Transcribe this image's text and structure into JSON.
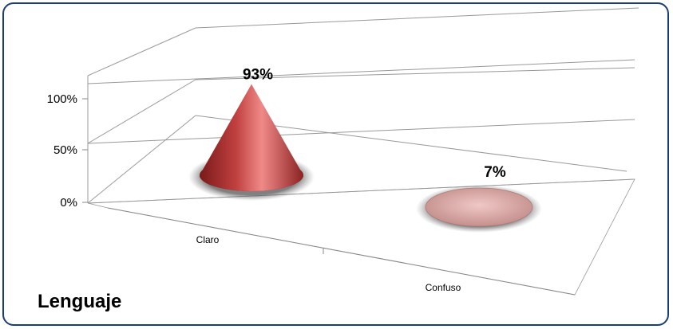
{
  "chart_data": {
    "type": "bar",
    "style": "3d-cone",
    "title": "Lenguaje",
    "categories": [
      "Claro",
      "Confuso"
    ],
    "values": [
      93,
      7
    ],
    "data_labels": [
      "93%",
      "7%"
    ],
    "ylim": [
      0,
      100
    ],
    "yticks": [
      "0%",
      "50%",
      "100%"
    ],
    "grid": true,
    "legend": "none",
    "colors": {
      "cone": "#c0403f",
      "cone_light": "#f08a88",
      "cone_dark": "#7a1a1a",
      "base_faint": "#d9a3a0",
      "frame": "#1a3d7a"
    }
  }
}
